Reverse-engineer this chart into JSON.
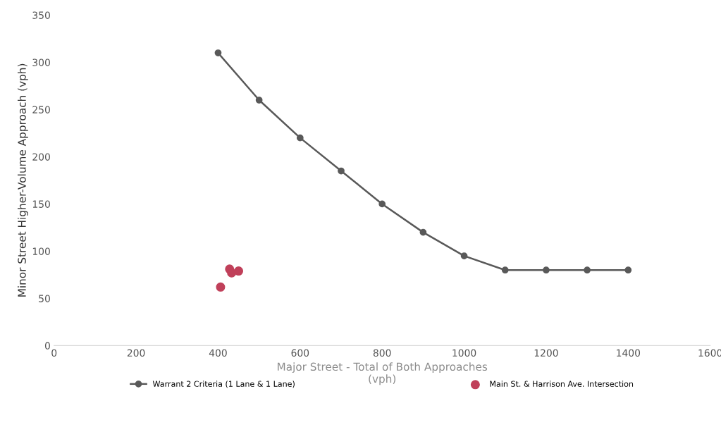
{
  "chart_data": {
    "type": "line",
    "xlabel": "Major Street - Total of Both Approaches\n(vph)",
    "ylabel": "Minor Street Higher-Volume Approach (vph)",
    "xlim": [
      0,
      1600
    ],
    "xticks": [
      0,
      200,
      400,
      600,
      800,
      1000,
      1200,
      1400,
      1600
    ],
    "ylim": [
      0,
      350
    ],
    "yticks": [
      0,
      50,
      100,
      150,
      200,
      250,
      300,
      350
    ],
    "grid": false,
    "legend": "bottom",
    "marker": "circle",
    "series": [
      {
        "name": "Warrant 2 Criteria (1 Lane & 1 Lane)",
        "color": "#595959",
        "x": [
          400,
          500,
          600,
          700,
          800,
          900,
          1000,
          1100,
          1200,
          1300,
          1400
        ],
        "values": [
          310,
          260,
          220,
          185,
          150,
          120,
          95,
          80,
          80,
          80,
          80
        ]
      },
      {
        "name": "Main St. & Harrison Ave. Intersection",
        "type": "scatter",
        "color": "#c0405a",
        "x": [
          406,
          428,
          433,
          450
        ],
        "values": [
          62,
          81,
          77,
          79
        ]
      }
    ]
  }
}
